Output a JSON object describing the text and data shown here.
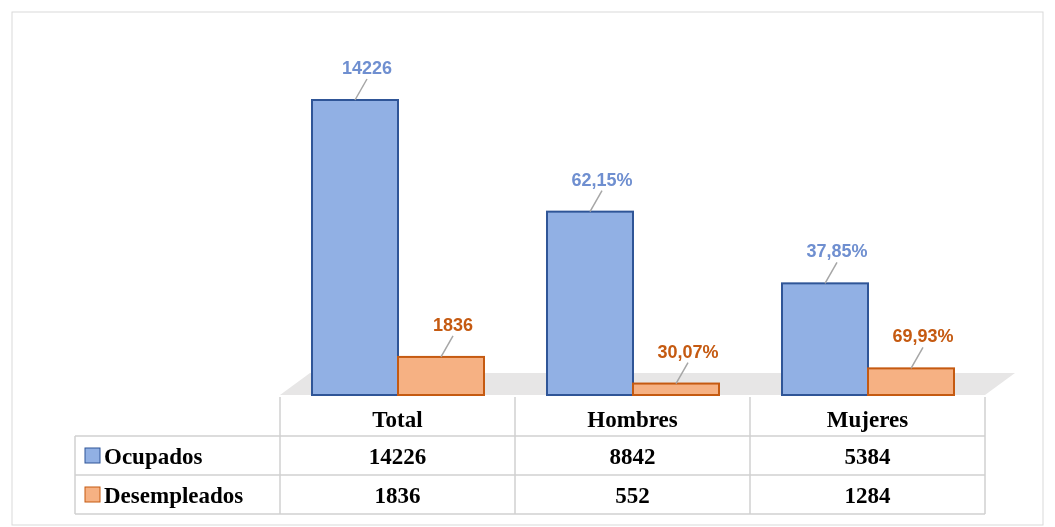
{
  "chart_data": {
    "type": "bar",
    "categories": [
      "Total",
      "Hombres",
      "Mujeres"
    ],
    "series": [
      {
        "name": "Ocupados",
        "color": "#91b0e4",
        "values": [
          14226,
          8842,
          5384
        ]
      },
      {
        "name": "Desempleados",
        "color": "#f6b183",
        "values": [
          1836,
          552,
          1284
        ]
      }
    ],
    "annotations": [
      {
        "text": "14226",
        "x": "Total",
        "y": 14226
      },
      {
        "text": "62,15%",
        "x": "Hombres",
        "y": 8842
      },
      {
        "text": "37,85%",
        "x": "Mujeres",
        "y": 5384
      },
      {
        "text": "1836",
        "x": "Total",
        "y": 1836
      },
      {
        "text": "30,07%",
        "x": "Hombres",
        "y": 552
      },
      {
        "text": "69,93%",
        "x": "Mujeres",
        "y": 1284
      }
    ],
    "data_labels": true,
    "legend": "bottom"
  }
}
